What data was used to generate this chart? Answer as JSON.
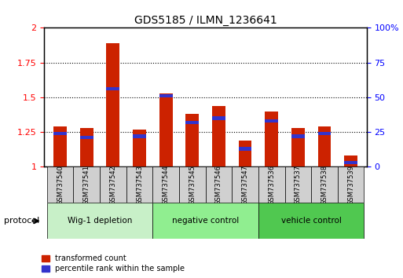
{
  "title": "GDS5185 / ILMN_1236641",
  "samples": [
    "GSM737540",
    "GSM737541",
    "GSM737542",
    "GSM737543",
    "GSM737544",
    "GSM737545",
    "GSM737546",
    "GSM737547",
    "GSM737536",
    "GSM737537",
    "GSM737538",
    "GSM737539"
  ],
  "red_values": [
    1.29,
    1.28,
    1.89,
    1.27,
    1.53,
    1.38,
    1.44,
    1.19,
    1.4,
    1.28,
    1.29,
    1.08
  ],
  "blue_values": [
    1.24,
    1.21,
    1.56,
    1.22,
    1.51,
    1.32,
    1.35,
    1.13,
    1.33,
    1.22,
    1.24,
    1.03
  ],
  "groups": [
    {
      "label": "Wig-1 depletion",
      "start": 0,
      "end": 4,
      "color": "#c8f0c8"
    },
    {
      "label": "negative control",
      "start": 4,
      "end": 8,
      "color": "#90ee90"
    },
    {
      "label": "vehicle control",
      "start": 8,
      "end": 12,
      "color": "#50c850"
    }
  ],
  "ylim": [
    1.0,
    2.0
  ],
  "y2lim": [
    0,
    100
  ],
  "yticks": [
    1.0,
    1.25,
    1.5,
    1.75,
    2.0
  ],
  "y2ticks": [
    0,
    25,
    50,
    75,
    100
  ],
  "ytick_labels": [
    "1",
    "1.25",
    "1.5",
    "1.75",
    "2"
  ],
  "y2tick_labels": [
    "0",
    "25",
    "50",
    "75",
    "100%"
  ],
  "red_color": "#cc2200",
  "blue_color": "#3333cc",
  "bar_width": 0.5,
  "plot_bg": "#ffffff",
  "sample_bg": "#d0d0d0",
  "legend_red": "transformed count",
  "legend_blue": "percentile rank within the sample",
  "protocol_label": "protocol"
}
